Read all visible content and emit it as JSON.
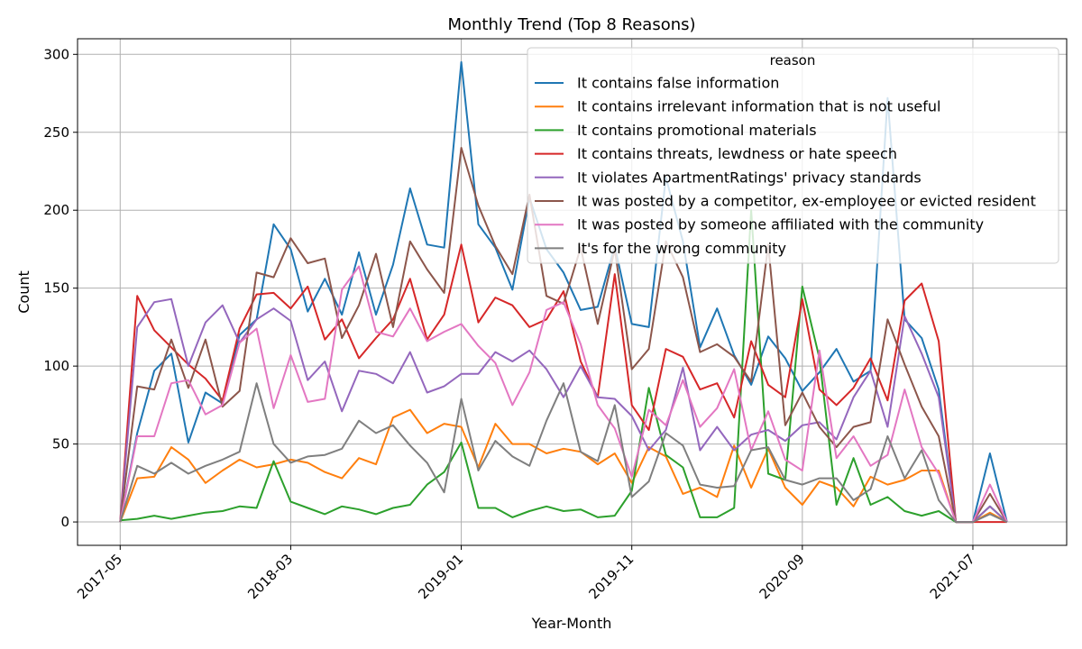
{
  "chart_data": {
    "type": "line",
    "title": "Monthly Trend (Top 8 Reasons)",
    "xlabel": "Year-Month",
    "ylabel": "Count",
    "ylim": [
      -15,
      310
    ],
    "yticks": [
      0,
      50,
      100,
      150,
      200,
      250,
      300
    ],
    "xtick_labels": [
      "2017-05",
      "2018-03",
      "2019-01",
      "2019-11",
      "2020-09",
      "2021-07"
    ],
    "xtick_positions": [
      0,
      10,
      20,
      30,
      40,
      50
    ],
    "xlim": [
      -2.5,
      55.5
    ],
    "grid": true,
    "legend": {
      "title": "reason",
      "placement": "top-right"
    },
    "x": [
      "2017-05",
      "2017-06",
      "2017-07",
      "2017-08",
      "2017-09",
      "2017-10",
      "2017-11",
      "2017-12",
      "2018-01",
      "2018-02",
      "2018-03",
      "2018-04",
      "2018-05",
      "2018-06",
      "2018-07",
      "2018-08",
      "2018-09",
      "2018-10",
      "2018-11",
      "2018-12",
      "2019-01",
      "2019-02",
      "2019-03",
      "2019-04",
      "2019-05",
      "2019-06",
      "2019-07",
      "2019-08",
      "2019-09",
      "2019-10",
      "2019-11",
      "2019-12",
      "2020-01",
      "2020-02",
      "2020-03",
      "2020-04",
      "2020-05",
      "2020-06",
      "2020-07",
      "2020-08",
      "2020-09",
      "2020-10",
      "2020-11",
      "2020-12",
      "2021-01",
      "2021-02",
      "2021-03",
      "2021-04",
      "2021-05",
      "2021-06",
      "2021-07",
      "2021-08",
      "2021-09"
    ],
    "series": [
      {
        "name": "It contains false information",
        "color": "#1f77b4",
        "values": [
          0,
          57,
          97,
          108,
          51,
          83,
          76,
          120,
          130,
          191,
          175,
          135,
          156,
          133,
          173,
          133,
          165,
          214,
          178,
          176,
          295,
          191,
          176,
          149,
          208,
          175,
          160,
          136,
          138,
          177,
          127,
          125,
          221,
          180,
          112,
          137,
          107,
          88,
          119,
          105,
          84,
          96,
          111,
          90,
          97,
          272,
          130,
          118,
          85,
          0,
          0,
          44,
          0
        ]
      },
      {
        "name": "It contains irrelevant information that is not useful",
        "color": "#ff7f0e",
        "values": [
          0,
          28,
          29,
          48,
          40,
          25,
          33,
          40,
          35,
          37,
          40,
          38,
          32,
          28,
          41,
          37,
          67,
          72,
          57,
          63,
          61,
          35,
          63,
          50,
          50,
          44,
          47,
          45,
          37,
          44,
          25,
          48,
          42,
          18,
          22,
          16,
          49,
          22,
          47,
          22,
          11,
          26,
          22,
          10,
          29,
          24,
          27,
          33,
          33,
          0,
          0,
          6,
          0
        ]
      },
      {
        "name": "It contains promotional materials",
        "color": "#2ca02c",
        "values": [
          1,
          2,
          4,
          2,
          4,
          6,
          7,
          10,
          9,
          39,
          13,
          9,
          5,
          10,
          8,
          5,
          9,
          11,
          24,
          32,
          51,
          9,
          9,
          3,
          7,
          10,
          7,
          8,
          3,
          4,
          20,
          86,
          43,
          35,
          3,
          3,
          9,
          200,
          31,
          27,
          151,
          105,
          11,
          41,
          11,
          16,
          7,
          4,
          7,
          0,
          0,
          10,
          0
        ]
      },
      {
        "name": "It contains threats, lewdness or hate speech",
        "color": "#d62728",
        "values": [
          0,
          145,
          123,
          112,
          101,
          92,
          78,
          124,
          146,
          147,
          137,
          151,
          117,
          130,
          105,
          118,
          130,
          156,
          117,
          133,
          178,
          128,
          144,
          139,
          125,
          130,
          148,
          103,
          80,
          159,
          75,
          59,
          111,
          106,
          85,
          89,
          67,
          116,
          88,
          80,
          143,
          85,
          75,
          86,
          105,
          78,
          142,
          153,
          116,
          0,
          0,
          0,
          0
        ]
      },
      {
        "name": "It violates ApartmentRatings' privacy standards",
        "color": "#9467bd",
        "values": [
          0,
          125,
          141,
          143,
          100,
          128,
          139,
          115,
          130,
          137,
          129,
          91,
          103,
          71,
          97,
          95,
          89,
          109,
          83,
          87,
          95,
          95,
          109,
          103,
          110,
          98,
          80,
          100,
          80,
          79,
          68,
          46,
          59,
          99,
          46,
          61,
          46,
          56,
          59,
          52,
          62,
          64,
          53,
          80,
          97,
          61,
          132,
          108,
          80,
          0,
          0,
          10,
          0
        ]
      },
      {
        "name": "It was posted by a competitor, ex-employee or evicted resident",
        "color": "#8c564b",
        "values": [
          0,
          87,
          85,
          117,
          86,
          117,
          74,
          84,
          160,
          157,
          182,
          166,
          169,
          118,
          139,
          172,
          125,
          180,
          162,
          147,
          240,
          203,
          177,
          159,
          210,
          145,
          140,
          176,
          127,
          175,
          98,
          111,
          180,
          157,
          109,
          114,
          106,
          90,
          178,
          62,
          83,
          61,
          48,
          61,
          64,
          130,
          101,
          74,
          55,
          0,
          0,
          18,
          0
        ]
      },
      {
        "name": "It was posted by someone affiliated with the community",
        "color": "#e377c2",
        "values": [
          0,
          55,
          55,
          89,
          91,
          69,
          75,
          115,
          124,
          73,
          107,
          77,
          79,
          149,
          164,
          122,
          119,
          137,
          116,
          122,
          127,
          113,
          102,
          75,
          96,
          136,
          141,
          114,
          75,
          60,
          29,
          72,
          62,
          91,
          61,
          73,
          98,
          46,
          71,
          40,
          33,
          110,
          41,
          55,
          36,
          43,
          85,
          48,
          31,
          0,
          0,
          24,
          0
        ]
      },
      {
        "name": "It's for the wrong community",
        "color": "#7f7f7f",
        "values": [
          0,
          36,
          31,
          38,
          31,
          36,
          40,
          45,
          89,
          50,
          38,
          42,
          43,
          47,
          65,
          57,
          62,
          49,
          38,
          19,
          79,
          33,
          52,
          42,
          36,
          65,
          89,
          45,
          39,
          75,
          16,
          26,
          57,
          49,
          24,
          22,
          23,
          46,
          48,
          27,
          24,
          28,
          28,
          14,
          21,
          55,
          28,
          46,
          14,
          0,
          0,
          5,
          0
        ]
      }
    ]
  }
}
